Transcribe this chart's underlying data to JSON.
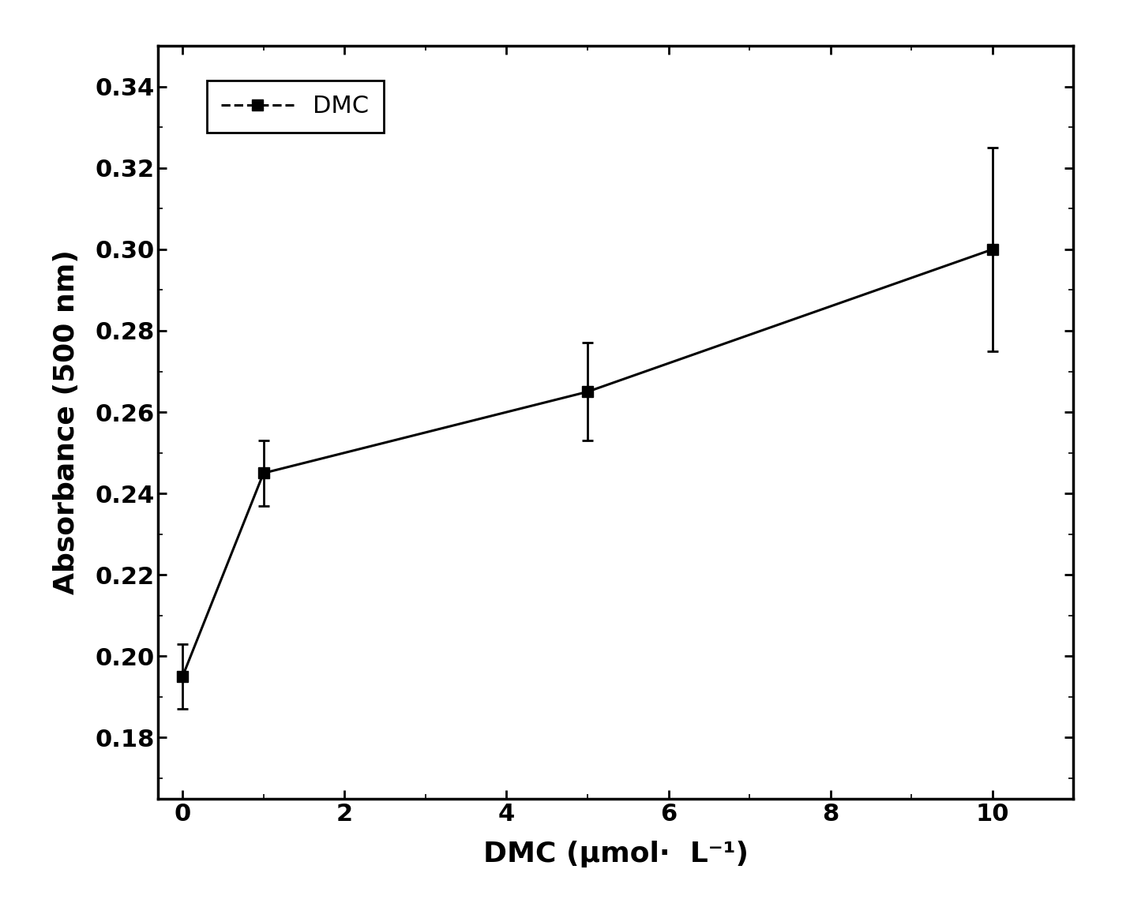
{
  "x": [
    0,
    1,
    5,
    10
  ],
  "y": [
    0.195,
    0.245,
    0.265,
    0.3
  ],
  "yerr": [
    0.008,
    0.008,
    0.012,
    0.025
  ],
  "xlabel": "DMC (μmol·  L⁻¹)",
  "ylabel": "Absorbance (500 nm)",
  "legend_label": "DMC",
  "xlim": [
    -0.3,
    11
  ],
  "ylim": [
    0.165,
    0.35
  ],
  "xticks": [
    0,
    2,
    4,
    6,
    8,
    10
  ],
  "yticks": [
    0.18,
    0.2,
    0.22,
    0.24,
    0.26,
    0.28,
    0.3,
    0.32,
    0.34
  ],
  "line_color": "#000000",
  "marker": "s",
  "marker_size": 10,
  "line_width": 2.2,
  "capsize": 5,
  "xlabel_fontsize": 26,
  "ylabel_fontsize": 26,
  "tick_fontsize": 22,
  "legend_fontsize": 22,
  "background_color": "#ffffff"
}
